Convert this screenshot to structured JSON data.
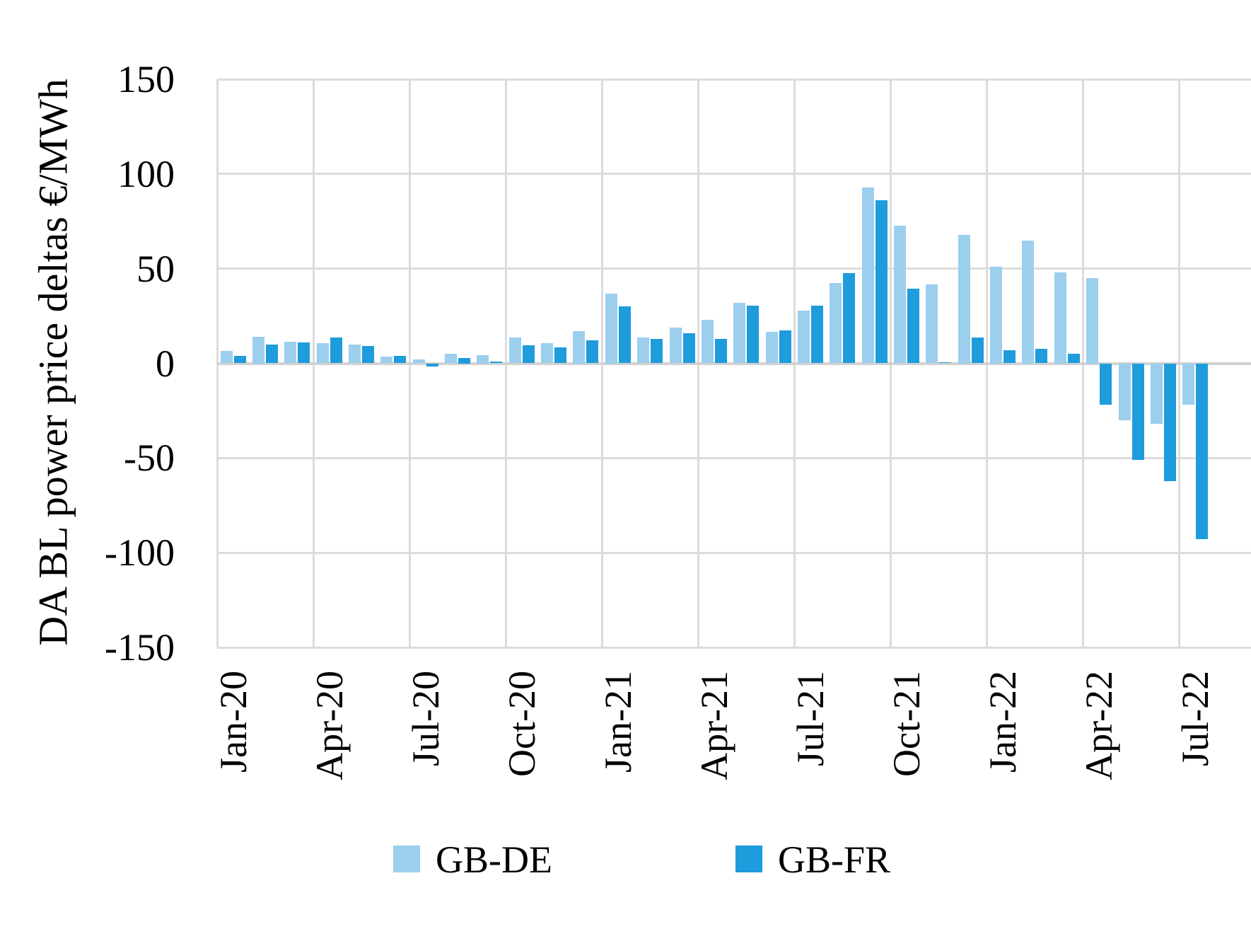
{
  "chart_data": {
    "type": "bar",
    "title": "",
    "xlabel": "",
    "ylabel": "DA BL power price deltas €/MWh",
    "ylim": [
      -150,
      150
    ],
    "ytick_interval": 50,
    "ytick_labels": [
      "150",
      "100",
      "50",
      "0",
      "-50",
      "-100",
      "-150"
    ],
    "ytick_values": [
      150,
      100,
      50,
      0,
      -50,
      -100,
      -150
    ],
    "grid": true,
    "legend_position": "bottom",
    "x_label_interval_months": 3,
    "categories": [
      "Jan-20",
      "Feb-20",
      "Mar-20",
      "Apr-20",
      "May-20",
      "Jun-20",
      "Jul-20",
      "Aug-20",
      "Sep-20",
      "Oct-20",
      "Nov-20",
      "Dec-20",
      "Jan-21",
      "Feb-21",
      "Mar-21",
      "Apr-21",
      "May-21",
      "Jun-21",
      "Jul-21",
      "Aug-21",
      "Sep-21",
      "Oct-21",
      "Nov-21",
      "Dec-21",
      "Jan-22",
      "Feb-22",
      "Mar-22",
      "Apr-22",
      "May-22",
      "Jun-22",
      "Jul-22"
    ],
    "x_tick_labels": [
      "Jan-20",
      "Apr-20",
      "Jul-20",
      "Oct-20",
      "Jan-21",
      "Apr-21",
      "Jul-21",
      "Oct-21",
      "Jan-22",
      "Apr-22",
      "Jul-22"
    ],
    "series": [
      {
        "name": "GB-DE",
        "color": "#9CCEEE",
        "values": [
          6.5,
          14,
          11.5,
          10.5,
          10,
          3.5,
          2,
          5,
          4.5,
          13.5,
          10.5,
          17,
          37,
          13.5,
          19,
          23,
          32,
          16.5,
          28,
          42.5,
          93,
          72.5,
          41.5,
          68,
          51,
          65,
          48,
          45,
          -30,
          -32,
          -22
        ]
      },
      {
        "name": "GB-FR",
        "color": "#1E9CDC",
        "values": [
          4,
          10,
          11,
          13.5,
          9,
          4,
          -1.5,
          3,
          1,
          9.5,
          8.5,
          12,
          30,
          13,
          16,
          13,
          30.5,
          17.5,
          30.5,
          47.5,
          86,
          39.5,
          0.5,
          13.5,
          7,
          7.5,
          5,
          -22,
          -51,
          -62,
          -93
        ]
      }
    ]
  },
  "axes": {
    "y_title": "DA BL power price deltas €/MWh"
  },
  "legend": {
    "items": [
      {
        "label": "GB-DE",
        "color": "#9CCEEE"
      },
      {
        "label": "GB-FR",
        "color": "#1E9CDC"
      }
    ]
  },
  "colors": {
    "background": "#ffffff",
    "gridline": "#dcdcdc",
    "axis_line": "#d2d2d2",
    "text": "#000000",
    "series_gb_de": "#9CCEEE",
    "series_gb_fr": "#1E9CDC"
  }
}
